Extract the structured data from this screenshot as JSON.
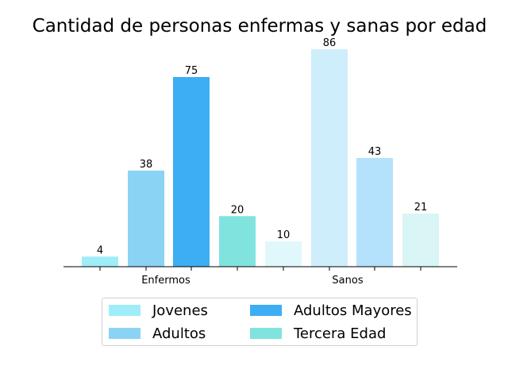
{
  "chart_data": {
    "type": "bar",
    "title": "Cantidad de personas enfermas y sanas por edad",
    "xlabel": "",
    "ylabel": "",
    "categories": [
      "Enfermos",
      "Sanos"
    ],
    "ylim": [
      0,
      90
    ],
    "grid": false,
    "legend_placement": "bottom-center",
    "series": [
      {
        "name": "Jovenes",
        "values": [
          4,
          10
        ],
        "colors": [
          "#9fedf8",
          "#e0f8fb"
        ]
      },
      {
        "name": "Adultos",
        "values": [
          38,
          86
        ],
        "colors": [
          "#8bd3f4",
          "#cfeefc"
        ]
      },
      {
        "name": "Adultos Mayores",
        "values": [
          75,
          43
        ],
        "colors": [
          "#3daef4",
          "#b4e1fb"
        ]
      },
      {
        "name": "Tercera Edad",
        "values": [
          20,
          21
        ],
        "colors": [
          "#80e3dd",
          "#d9f5f5"
        ]
      }
    ]
  }
}
